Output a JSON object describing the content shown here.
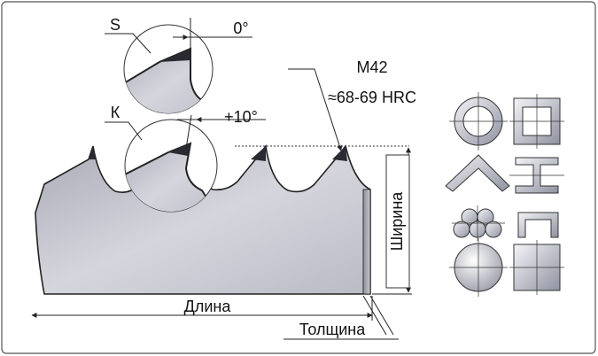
{
  "labels": {
    "tooth_s": "S",
    "angle_s": "0°",
    "tooth_k": "К",
    "angle_k": "+10°",
    "material": "M42",
    "hardness": "≈68-69 HRC",
    "width": "Ширина",
    "length": "Длина",
    "thickness": "Толщина"
  },
  "profiles": [
    {
      "name": "round-tube"
    },
    {
      "name": "square-tube"
    },
    {
      "name": "angle-bar"
    },
    {
      "name": "i-beam"
    },
    {
      "name": "bundled-bars"
    },
    {
      "name": "channel"
    },
    {
      "name": "solid-round"
    },
    {
      "name": "solid-square"
    }
  ]
}
